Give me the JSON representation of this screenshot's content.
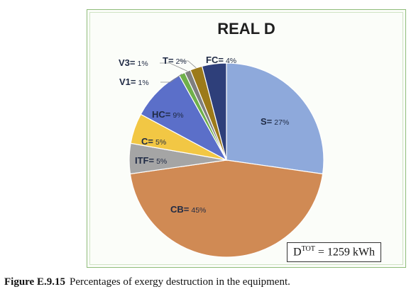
{
  "chart_data": {
    "type": "pie",
    "title": "REAL D",
    "slices": [
      {
        "label": "S",
        "value": 27,
        "color": "#8ea9db"
      },
      {
        "label": "CB",
        "value": 45,
        "color": "#d08a54"
      },
      {
        "label": "ITF",
        "value": 5,
        "color": "#a5a5a5"
      },
      {
        "label": "C",
        "value": 5,
        "color": "#f2c744"
      },
      {
        "label": "HC",
        "value": 9,
        "color": "#5b6fc9"
      },
      {
        "label": "V1",
        "value": 1,
        "color": "#6fb04a"
      },
      {
        "label": "V3",
        "value": 1,
        "color": "#7f7f7f"
      },
      {
        "label": "T",
        "value": 2,
        "color": "#9c7a1a"
      },
      {
        "label": "FC",
        "value": 4,
        "color": "#2e3f7a"
      }
    ],
    "percent_suffix": "%",
    "label_separator": "="
  },
  "annotation": {
    "symbol": "D",
    "superscript": "TOT",
    "equals": "=",
    "value": "1259",
    "unit": "kWh"
  },
  "caption": {
    "figure_label": "Figure E.9.15",
    "text": "Percentages of exergy destruction in the equipment."
  }
}
